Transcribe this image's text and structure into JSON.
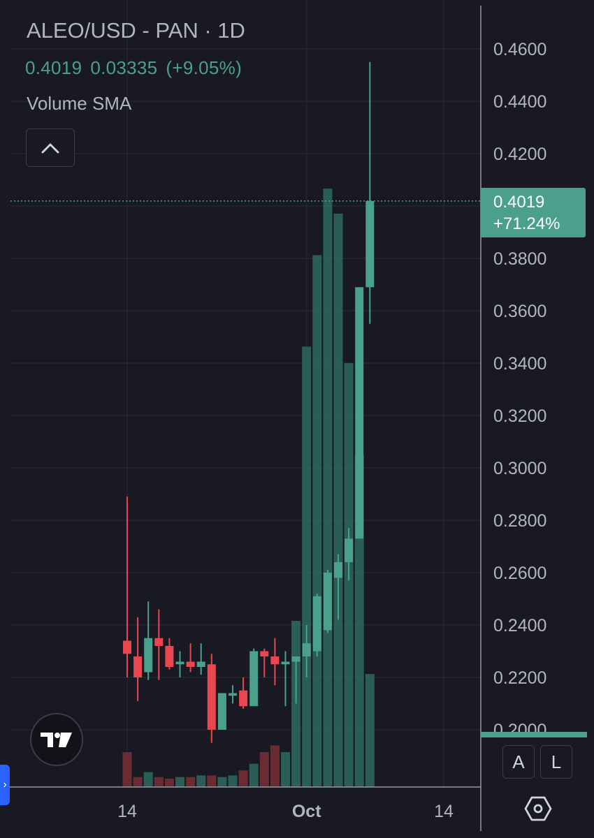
{
  "header": {
    "title": "ALEO/USD - PAN · 1D",
    "last_price": "0.4019",
    "change": "0.03335",
    "change_pct": "(+9.05%)",
    "indicator": "Volume SMA"
  },
  "price_badge": {
    "price": "0.4019",
    "change_pct": "+71.24%"
  },
  "controls": {
    "auto_label": "A",
    "log_label": "L"
  },
  "icons": {
    "collapse": "chevron-up-icon",
    "logo": "tradingview-logo",
    "settings": "hexagon-gear-icon",
    "side_tab": "chevron-right-icon"
  },
  "colors": {
    "background": "#181923",
    "up": "#4aa08b",
    "down": "#e8474f",
    "grid": "#262833",
    "text": "#b2b5be"
  },
  "chart_data": {
    "type": "candlestick",
    "title": "ALEO/USD - PAN · 1D",
    "y_axis": {
      "ticks": [
        "0.2000",
        "0.2200",
        "0.2400",
        "0.2600",
        "0.2800",
        "0.3000",
        "0.3200",
        "0.3400",
        "0.3600",
        "0.3800",
        "0.4200",
        "0.4400",
        "0.4600"
      ],
      "range": [
        0.178,
        0.4855
      ]
    },
    "x_axis": {
      "ticks": [
        {
          "label": "14",
          "index": 0
        },
        {
          "label": "Oct",
          "index": 17
        },
        {
          "label": "14",
          "index": 30
        }
      ]
    },
    "last_price_line": 0.4019,
    "candles": [
      {
        "o": 0.234,
        "h": 0.289,
        "l": 0.22,
        "c": 0.229,
        "v": 0.21
      },
      {
        "o": 0.228,
        "h": 0.243,
        "l": 0.211,
        "c": 0.22,
        "v": 0.06
      },
      {
        "o": 0.222,
        "h": 0.249,
        "l": 0.219,
        "c": 0.235,
        "v": 0.09
      },
      {
        "o": 0.235,
        "h": 0.246,
        "l": 0.219,
        "c": 0.232,
        "v": 0.06
      },
      {
        "o": 0.232,
        "h": 0.235,
        "l": 0.223,
        "c": 0.224,
        "v": 0.05
      },
      {
        "o": 0.225,
        "h": 0.23,
        "l": 0.22,
        "c": 0.226,
        "v": 0.06
      },
      {
        "o": 0.226,
        "h": 0.233,
        "l": 0.222,
        "c": 0.224,
        "v": 0.06
      },
      {
        "o": 0.224,
        "h": 0.233,
        "l": 0.221,
        "c": 0.226,
        "v": 0.07
      },
      {
        "o": 0.225,
        "h": 0.229,
        "l": 0.195,
        "c": 0.2,
        "v": 0.07
      },
      {
        "o": 0.2,
        "h": 0.214,
        "l": 0.2,
        "c": 0.214,
        "v": 0.06
      },
      {
        "o": 0.213,
        "h": 0.217,
        "l": 0.21,
        "c": 0.214,
        "v": 0.07
      },
      {
        "o": 0.215,
        "h": 0.22,
        "l": 0.208,
        "c": 0.209,
        "v": 0.1
      },
      {
        "o": 0.209,
        "h": 0.231,
        "l": 0.209,
        "c": 0.23,
        "v": 0.14
      },
      {
        "o": 0.23,
        "h": 0.231,
        "l": 0.22,
        "c": 0.228,
        "v": 0.21
      },
      {
        "o": 0.228,
        "h": 0.235,
        "l": 0.217,
        "c": 0.225,
        "v": 0.25
      },
      {
        "o": 0.225,
        "h": 0.23,
        "l": 0.209,
        "c": 0.226,
        "v": 0.21
      },
      {
        "o": 0.226,
        "h": 0.228,
        "l": 0.21,
        "c": 0.228,
        "v": 1.0
      },
      {
        "o": 0.228,
        "h": 0.24,
        "l": 0.22,
        "c": 0.233,
        "v": 2.65
      },
      {
        "o": 0.23,
        "h": 0.252,
        "l": 0.228,
        "c": 0.251,
        "v": 3.2
      },
      {
        "o": 0.238,
        "h": 0.261,
        "l": 0.237,
        "c": 0.26,
        "v": 3.6
      },
      {
        "o": 0.258,
        "h": 0.267,
        "l": 0.242,
        "c": 0.264,
        "v": 3.45
      },
      {
        "o": 0.264,
        "h": 0.277,
        "l": 0.257,
        "c": 0.273,
        "v": 2.55
      },
      {
        "o": 0.273,
        "h": 0.369,
        "l": 0.273,
        "c": 0.369,
        "v": 2.0
      },
      {
        "o": 0.369,
        "h": 0.455,
        "l": 0.355,
        "c": 0.4019,
        "v": 0.68
      }
    ]
  }
}
